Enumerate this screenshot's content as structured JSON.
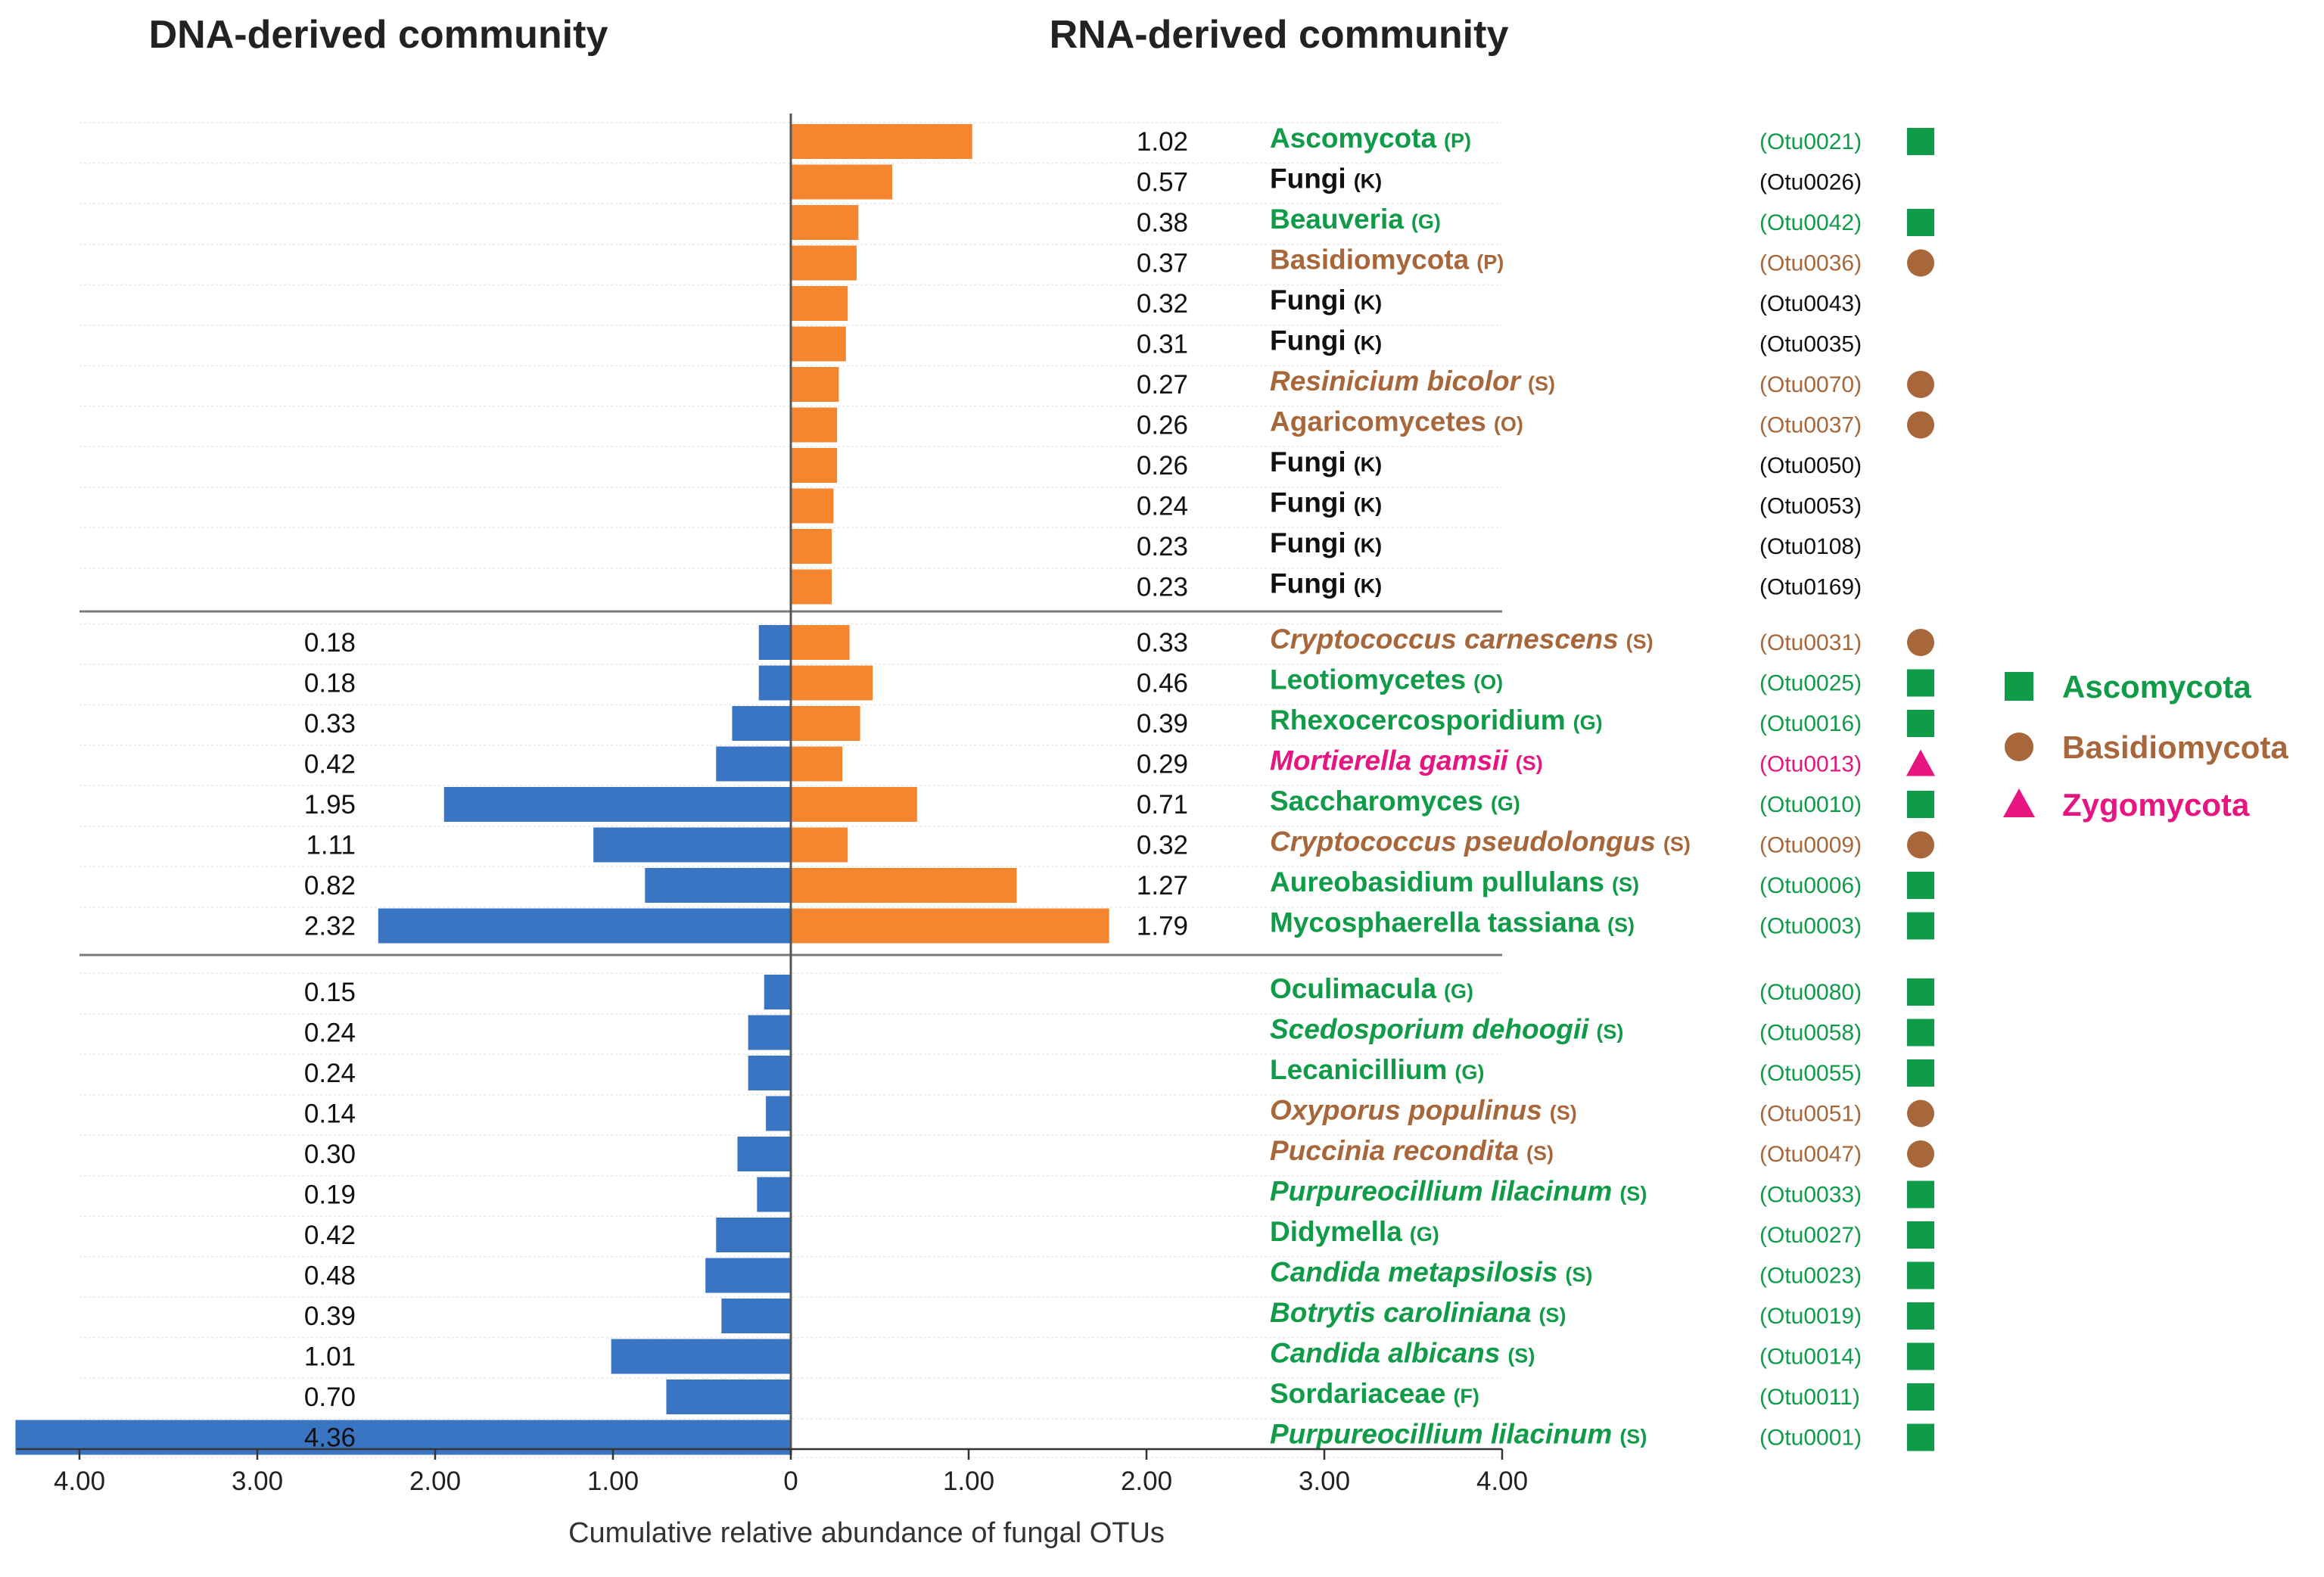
{
  "chart_data": {
    "type": "bar",
    "orientation": "diverging-horizontal",
    "titles": {
      "left": "DNA-derived community",
      "right": "RNA-derived community"
    },
    "xlabel": "Cumulative relative abundance of fungal OTUs",
    "x_ticks": [
      "4.00",
      "3.00",
      "2.00",
      "1.00",
      "0",
      "1.00",
      "2.00",
      "3.00",
      "4.00"
    ],
    "xlim": [
      -4.4,
      4.0
    ],
    "colors": {
      "dna": "#3a75c4",
      "rna": "#f5862f",
      "Ascomycota": "#0f9b48",
      "Basidiomycota": "#a8673a",
      "Zygomycota": "#e6157f",
      "Unclassified": "#111111"
    },
    "series": [
      {
        "name": "DNA-derived community",
        "side": "left"
      },
      {
        "name": "RNA-derived community",
        "side": "right"
      }
    ],
    "legend": [
      {
        "label": "Ascomycota",
        "shape": "square"
      },
      {
        "label": "Basidiomycota",
        "shape": "circle"
      },
      {
        "label": "Zygomycota",
        "shape": "triangle"
      }
    ],
    "rows": [
      {
        "group": 0,
        "taxon": "Ascomycota",
        "rank": "(P)",
        "otu": "(Otu0021)",
        "phylum": "Ascomycota",
        "italic": false,
        "dna": null,
        "dna_label": "",
        "rna": 1.02,
        "rna_label": "1.02"
      },
      {
        "group": 0,
        "taxon": "Fungi",
        "rank": "(K)",
        "otu": "(Otu0026)",
        "phylum": "Unclassified",
        "italic": false,
        "dna": null,
        "dna_label": "",
        "rna": 0.57,
        "rna_label": "0.57"
      },
      {
        "group": 0,
        "taxon": "Beauveria",
        "rank": "(G)",
        "otu": "(Otu0042)",
        "phylum": "Ascomycota",
        "italic": false,
        "dna": null,
        "dna_label": "",
        "rna": 0.38,
        "rna_label": "0.38"
      },
      {
        "group": 0,
        "taxon": "Basidiomycota",
        "rank": "(P)",
        "otu": "(Otu0036)",
        "phylum": "Basidiomycota",
        "italic": false,
        "dna": null,
        "dna_label": "",
        "rna": 0.37,
        "rna_label": "0.37"
      },
      {
        "group": 0,
        "taxon": "Fungi",
        "rank": "(K)",
        "otu": "(Otu0043)",
        "phylum": "Unclassified",
        "italic": false,
        "dna": null,
        "dna_label": "",
        "rna": 0.32,
        "rna_label": "0.32"
      },
      {
        "group": 0,
        "taxon": "Fungi",
        "rank": "(K)",
        "otu": "(Otu0035)",
        "phylum": "Unclassified",
        "italic": false,
        "dna": null,
        "dna_label": "",
        "rna": 0.31,
        "rna_label": "0.31"
      },
      {
        "group": 0,
        "taxon": "Resinicium bicolor",
        "rank": "(S)",
        "otu": "(Otu0070)",
        "phylum": "Basidiomycota",
        "italic": true,
        "dna": null,
        "dna_label": "",
        "rna": 0.27,
        "rna_label": "0.27"
      },
      {
        "group": 0,
        "taxon": "Agaricomycetes",
        "rank": "(O)",
        "otu": "(Otu0037)",
        "phylum": "Basidiomycota",
        "italic": false,
        "dna": null,
        "dna_label": "",
        "rna": 0.26,
        "rna_label": "0.26"
      },
      {
        "group": 0,
        "taxon": "Fungi",
        "rank": "(K)",
        "otu": "(Otu0050)",
        "phylum": "Unclassified",
        "italic": false,
        "dna": null,
        "dna_label": "",
        "rna": 0.26,
        "rna_label": "0.26"
      },
      {
        "group": 0,
        "taxon": "Fungi",
        "rank": "(K)",
        "otu": "(Otu0053)",
        "phylum": "Unclassified",
        "italic": false,
        "dna": null,
        "dna_label": "",
        "rna": 0.24,
        "rna_label": "0.24"
      },
      {
        "group": 0,
        "taxon": "Fungi",
        "rank": "(K)",
        "otu": "(Otu0108)",
        "phylum": "Unclassified",
        "italic": false,
        "dna": null,
        "dna_label": "",
        "rna": 0.23,
        "rna_label": "0.23"
      },
      {
        "group": 0,
        "taxon": "Fungi",
        "rank": "(K)",
        "otu": "(Otu0169)",
        "phylum": "Unclassified",
        "italic": false,
        "dna": null,
        "dna_label": "",
        "rna": 0.23,
        "rna_label": "0.23"
      },
      {
        "group": 1,
        "taxon": "Cryptococcus carnescens",
        "rank": "(S)",
        "otu": "(Otu0031)",
        "phylum": "Basidiomycota",
        "italic": true,
        "dna": 0.18,
        "dna_label": "0.18",
        "rna": 0.33,
        "rna_label": "0.33"
      },
      {
        "group": 1,
        "taxon": "Leotiomycetes",
        "rank": "(O)",
        "otu": "(Otu0025)",
        "phylum": "Ascomycota",
        "italic": false,
        "dna": 0.18,
        "dna_label": "0.18",
        "rna": 0.46,
        "rna_label": "0.46"
      },
      {
        "group": 1,
        "taxon": "Rhexocercosporidium",
        "rank": "(G)",
        "otu": "(Otu0016)",
        "phylum": "Ascomycota",
        "italic": false,
        "dna": 0.33,
        "dna_label": "0.33",
        "rna": 0.39,
        "rna_label": "0.39"
      },
      {
        "group": 1,
        "taxon": "Mortierella gamsii",
        "rank": "(S)",
        "otu": "(Otu0013)",
        "phylum": "Zygomycota",
        "italic": true,
        "dna": 0.42,
        "dna_label": "0.42",
        "rna": 0.29,
        "rna_label": "0.29"
      },
      {
        "group": 1,
        "taxon": "Saccharomyces",
        "rank": "(G)",
        "otu": "(Otu0010)",
        "phylum": "Ascomycota",
        "italic": false,
        "dna": 1.95,
        "dna_label": "1.95",
        "rna": 0.71,
        "rna_label": "0.71"
      },
      {
        "group": 1,
        "taxon": "Cryptococcus pseudolongus",
        "rank": "(S)",
        "otu": "(Otu0009)",
        "phylum": "Basidiomycota",
        "italic": true,
        "dna": 1.11,
        "dna_label": "1.11",
        "rna": 0.32,
        "rna_label": "0.32"
      },
      {
        "group": 1,
        "taxon": "Aureobasidium pullulans",
        "rank": "(S)",
        "otu": "(Otu0006)",
        "phylum": "Ascomycota",
        "italic": false,
        "dna": 0.82,
        "dna_label": "0.82",
        "rna": 1.27,
        "rna_label": "1.27"
      },
      {
        "group": 1,
        "taxon": "Mycosphaerella tassiana",
        "rank": "(S)",
        "otu": "(Otu0003)",
        "phylum": "Ascomycota",
        "italic": false,
        "dna": 2.32,
        "dna_label": "2.32",
        "rna": 1.79,
        "rna_label": "1.79"
      },
      {
        "group": 2,
        "taxon": "Oculimacula",
        "rank": "(G)",
        "otu": "(Otu0080)",
        "phylum": "Ascomycota",
        "italic": false,
        "dna": 0.15,
        "dna_label": "0.15",
        "rna": null,
        "rna_label": ""
      },
      {
        "group": 2,
        "taxon": "Scedosporium dehoogii",
        "rank": "(S)",
        "otu": "(Otu0058)",
        "phylum": "Ascomycota",
        "italic": true,
        "dna": 0.24,
        "dna_label": "0.24",
        "rna": null,
        "rna_label": ""
      },
      {
        "group": 2,
        "taxon": "Lecanicillium",
        "rank": "(G)",
        "otu": "(Otu0055)",
        "phylum": "Ascomycota",
        "italic": false,
        "dna": 0.24,
        "dna_label": "0.24",
        "rna": null,
        "rna_label": ""
      },
      {
        "group": 2,
        "taxon": "Oxyporus populinus",
        "rank": "(S)",
        "otu": "(Otu0051)",
        "phylum": "Basidiomycota",
        "italic": true,
        "dna": 0.14,
        "dna_label": "0.14",
        "rna": null,
        "rna_label": ""
      },
      {
        "group": 2,
        "taxon": "Puccinia recondita",
        "rank": "(S)",
        "otu": "(Otu0047)",
        "phylum": "Basidiomycota",
        "italic": true,
        "dna": 0.3,
        "dna_label": "0.30",
        "rna": null,
        "rna_label": ""
      },
      {
        "group": 2,
        "taxon": "Purpureocillium lilacinum",
        "rank": "(S)",
        "otu": "(Otu0033)",
        "phylum": "Ascomycota",
        "italic": true,
        "dna": 0.19,
        "dna_label": "0.19",
        "rna": null,
        "rna_label": ""
      },
      {
        "group": 2,
        "taxon": "Didymella",
        "rank": "(G)",
        "otu": "(Otu0027)",
        "phylum": "Ascomycota",
        "italic": false,
        "dna": 0.42,
        "dna_label": "0.42",
        "rna": null,
        "rna_label": ""
      },
      {
        "group": 2,
        "taxon": "Candida metapsilosis",
        "rank": "(S)",
        "otu": "(Otu0023)",
        "phylum": "Ascomycota",
        "italic": true,
        "dna": 0.48,
        "dna_label": "0.48",
        "rna": null,
        "rna_label": ""
      },
      {
        "group": 2,
        "taxon": "Botrytis caroliniana",
        "rank": "(S)",
        "otu": "(Otu0019)",
        "phylum": "Ascomycota",
        "italic": true,
        "dna": 0.39,
        "dna_label": "0.39",
        "rna": null,
        "rna_label": ""
      },
      {
        "group": 2,
        "taxon": "Candida albicans",
        "rank": "(S)",
        "otu": "(Otu0014)",
        "phylum": "Ascomycota",
        "italic": true,
        "dna": 1.01,
        "dna_label": "1.01",
        "rna": null,
        "rna_label": ""
      },
      {
        "group": 2,
        "taxon": "Sordariaceae",
        "rank": "(F)",
        "otu": "(Otu0011)",
        "phylum": "Ascomycota",
        "italic": false,
        "dna": 0.7,
        "dna_label": "0.70",
        "rna": null,
        "rna_label": ""
      },
      {
        "group": 2,
        "taxon": "Purpureocillium lilacinum",
        "rank": "(S)",
        "otu": "(Otu0001)",
        "phylum": "Ascomycota",
        "italic": true,
        "dna": 4.36,
        "dna_label": "4.36",
        "rna": null,
        "rna_label": ""
      }
    ]
  }
}
